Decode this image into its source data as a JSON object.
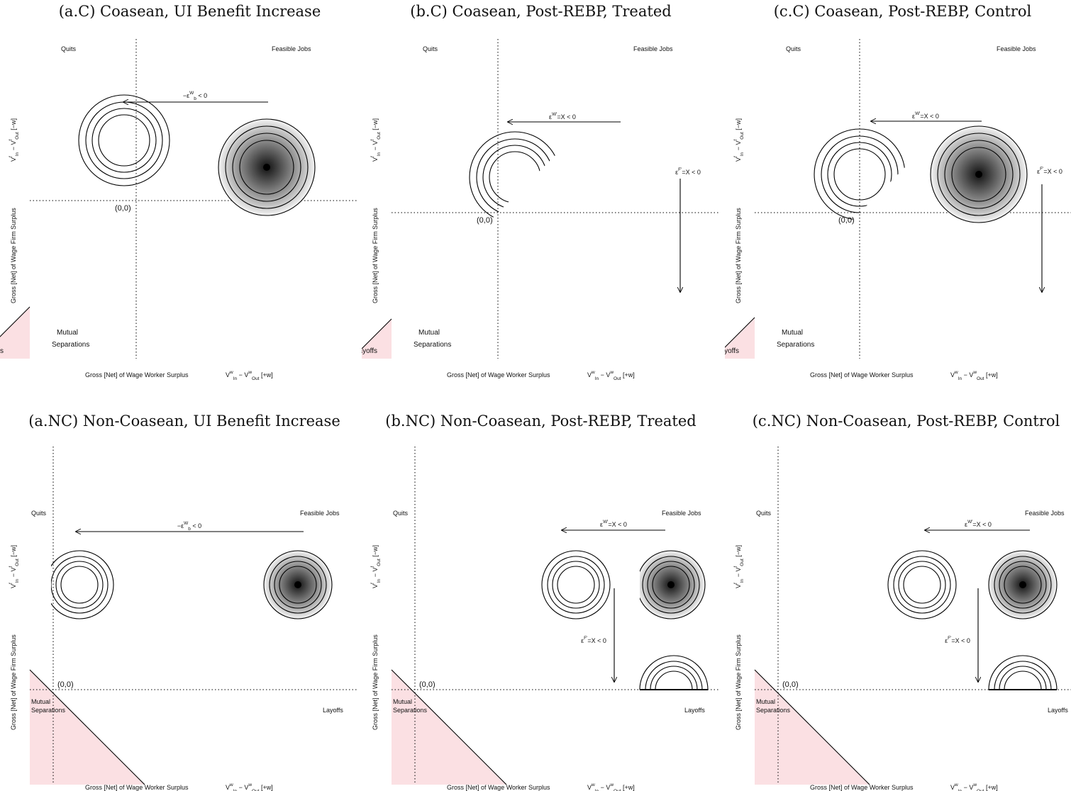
{
  "labels": {
    "quits": "Quits",
    "feasible": "Feasible Jobs",
    "mutual_1": "Mutual",
    "mutual_2": "Separations",
    "layoffs": "Layoffs",
    "origin": "(0,0)",
    "xlabel_text": "Gross [Net] of Wage Worker Surplus",
    "ylabel_text": "Gross [Net] of Wage Firm Surplus",
    "x_formula": {
      "V": "V",
      "sup": "w",
      "sub_in": "In",
      "minus": "−",
      "sub_out": "Out",
      "tail": "[+w]"
    },
    "y_formula": {
      "V": "V",
      "sup": "f",
      "sub_in": "In",
      "minus": "−",
      "sub_out": "Out",
      "tail": "[−w]"
    },
    "eps_b": {
      "lead": "−ε",
      "sup": "W",
      "sub": "b",
      "tail": " < 0"
    },
    "eps_w": {
      "lead": "ε",
      "sup": "W'",
      "tail": "=X < 0"
    },
    "eps_f": {
      "lead": "ε",
      "sup": "F'",
      "tail": "=X < 0"
    }
  },
  "colors": {
    "mutual_region_fill": "#fbe0e3",
    "line": "#000000",
    "gradient_dark": "#111111",
    "gradient_light": "#f4f4f4"
  },
  "panels": [
    {
      "id": "a-c",
      "title": "(a.C) Coasean, UI Benefit Increase",
      "mode": "coasean",
      "variant": "benefit"
    },
    {
      "id": "b-c",
      "title": "(b.C) Coasean, Post-REBP, Treated",
      "mode": "coasean",
      "variant": "treated"
    },
    {
      "id": "c-c",
      "title": "(c.C) Coasean, Post-REBP, Control",
      "mode": "coasean",
      "variant": "control"
    },
    {
      "id": "a-nc",
      "title": "(a.NC) Non-Coasean, UI Benefit Increase",
      "mode": "noncoasean",
      "variant": "benefit"
    },
    {
      "id": "b-nc",
      "title": "(b.NC) Non-Coasean, Post-REBP, Treated",
      "mode": "noncoasean",
      "variant": "treated"
    },
    {
      "id": "c-nc",
      "title": "(c.NC) Non-Coasean, Post-REBP, Control",
      "mode": "noncoasean",
      "variant": "control"
    }
  ]
}
